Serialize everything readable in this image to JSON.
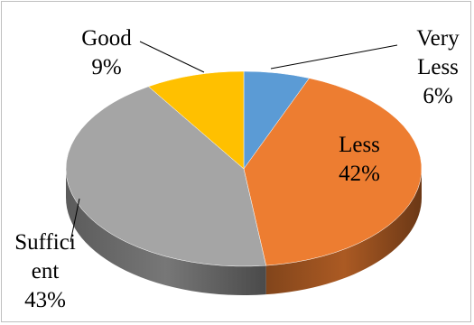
{
  "chart_data": {
    "type": "pie",
    "style": "3d",
    "slices": [
      {
        "key": "very_less",
        "lines": [
          "Very",
          "Less"
        ],
        "value": 6,
        "label": "6%",
        "color": "#5b9bd5"
      },
      {
        "key": "less",
        "lines": [
          "Less"
        ],
        "value": 42,
        "label": "42%",
        "color": "#ed7d31"
      },
      {
        "key": "sufficient",
        "lines": [
          "Suffici",
          "ent"
        ],
        "value": 43,
        "label": "43%",
        "color": "#a5a5a5"
      },
      {
        "key": "good",
        "lines": [
          "Good"
        ],
        "value": 9,
        "label": "9%",
        "color": "#ffc000"
      }
    ],
    "data_labels": "outside-with-leader-lines",
    "legend": "none"
  }
}
